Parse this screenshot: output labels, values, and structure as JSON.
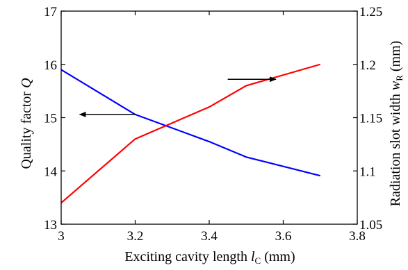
{
  "chart_data": {
    "type": "line",
    "x": [
      3.0,
      3.2,
      3.4,
      3.5,
      3.7
    ],
    "xlim": [
      3.0,
      3.8
    ],
    "xticks": [
      "3",
      "3.2",
      "3.4",
      "3.6",
      "3.8"
    ],
    "xlabel": {
      "main": "Exciting cavity length ",
      "var": "l",
      "sub": "C",
      "unit": " (mm)"
    },
    "left_axis": {
      "label": {
        "main": "Quality factor ",
        "var": "Q"
      },
      "ylim": [
        13,
        17
      ],
      "ticks": [
        "13",
        "14",
        "15",
        "16",
        "17"
      ]
    },
    "right_axis": {
      "label": {
        "main": "Radiation slot width ",
        "var": "w",
        "sub": "R",
        "unit": " (mm)"
      },
      "ylim": [
        1.05,
        1.25
      ],
      "ticks": [
        "1.05",
        "1.1",
        "1.15",
        "1.2",
        "1.25"
      ]
    },
    "series": [
      {
        "axis": "left",
        "color": "#0000ff",
        "values": [
          15.9,
          15.06,
          14.55,
          14.26,
          13.91
        ]
      },
      {
        "axis": "right",
        "color": "#ff0000",
        "values": [
          1.07,
          1.13,
          1.16,
          1.18,
          1.2
        ]
      }
    ],
    "annotations": [
      {
        "type": "arrow",
        "points_to": "left_axis",
        "from_x": 3.2,
        "to_x": 3.05,
        "y_left": 15.06
      },
      {
        "type": "arrow",
        "points_to": "right_axis",
        "from_x": 3.45,
        "to_x": 3.58,
        "y_left": 15.72
      }
    ],
    "grid": false,
    "legend": "none"
  }
}
